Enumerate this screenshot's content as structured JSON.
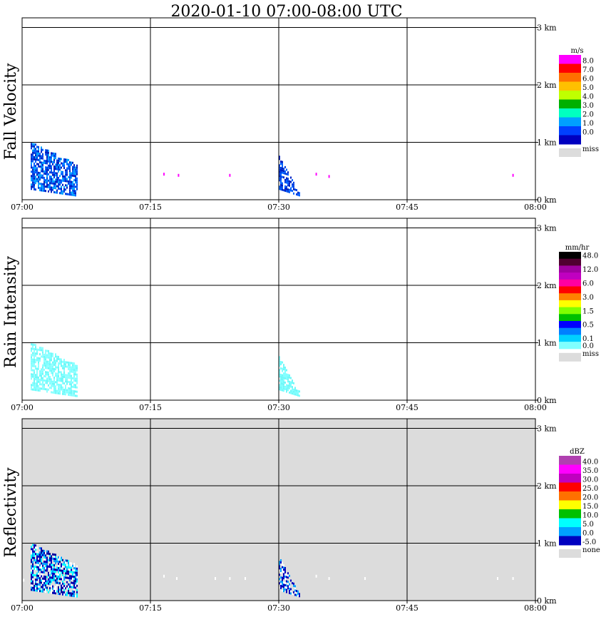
{
  "title": "2020-01-10   07:00-08:00 UTC",
  "chart_data": [
    {
      "type": "heatmap",
      "ylabel": "Fall Velocity",
      "x_ticks": [
        "07:00",
        "07:15",
        "07:30",
        "07:45",
        "08:00"
      ],
      "y_ticks": [
        "0 km",
        "1 km",
        "2 km",
        "3 km"
      ],
      "xlim": [
        "07:00",
        "08:00"
      ],
      "ylim_km": [
        0,
        3.2
      ],
      "background": "#ffffff",
      "legend": {
        "unit": "m/s",
        "entries": [
          {
            "label": "8.0",
            "color": "#ff00ff"
          },
          {
            "label": "7.0",
            "color": "#ff0000"
          },
          {
            "label": "6.0",
            "color": "#ff7000"
          },
          {
            "label": "5.0",
            "color": "#ffc000"
          },
          {
            "label": "4.0",
            "color": "#c0ff00"
          },
          {
            "label": "3.0",
            "color": "#00b000"
          },
          {
            "label": "2.0",
            "color": "#00ffc0"
          },
          {
            "label": "1.0",
            "color": "#00a0ff"
          },
          {
            "label": "0.0",
            "color": "#0040ff"
          },
          {
            "label": "",
            "color": "#0000c0"
          }
        ],
        "miss_label": "miss",
        "miss_color": "#dcdcdc"
      },
      "echoes": [
        {
          "t_start": 1.0,
          "t_end": 6.5,
          "h_top": 1.0,
          "h_bottom": 0.05,
          "colors": [
            "#0060ff",
            "#0040e0",
            "#00a0ff",
            "#0020c0"
          ]
        },
        {
          "t_start": 30.0,
          "t_end": 32.5,
          "h_top": 0.75,
          "h_bottom": 0.05,
          "colors": [
            "#0060ff",
            "#0040e0",
            "#0020c0"
          ]
        }
      ],
      "dots": [
        {
          "t": 16.5,
          "h": 0.42,
          "color": "#ff00ff"
        },
        {
          "t": 18.2,
          "h": 0.4,
          "color": "#ff00ff"
        },
        {
          "t": 24.2,
          "h": 0.4,
          "color": "#ff00ff"
        },
        {
          "t": 34.3,
          "h": 0.42,
          "color": "#ff00ff"
        },
        {
          "t": 35.8,
          "h": 0.38,
          "color": "#ff00ff"
        },
        {
          "t": 57.3,
          "h": 0.4,
          "color": "#ff00ff"
        }
      ]
    },
    {
      "type": "heatmap",
      "ylabel": "Rain Intensity",
      "x_ticks": [
        "07:00",
        "07:15",
        "07:30",
        "07:45",
        "08:00"
      ],
      "y_ticks": [
        "0 km",
        "1 km",
        "2 km",
        "3 km"
      ],
      "xlim": [
        "07:00",
        "08:00"
      ],
      "ylim_km": [
        0,
        3.2
      ],
      "background": "#ffffff",
      "legend": {
        "unit": "mm/hr",
        "entries": [
          {
            "label": "48.0",
            "color": "#000000"
          },
          {
            "label": "",
            "color": "#500030"
          },
          {
            "label": "12.0",
            "color": "#a000a0"
          },
          {
            "label": "",
            "color": "#c000c0"
          },
          {
            "label": "6.0",
            "color": "#ff00a0"
          },
          {
            "label": "",
            "color": "#ff0000"
          },
          {
            "label": "3.0",
            "color": "#ff8000"
          },
          {
            "label": "",
            "color": "#ffff00"
          },
          {
            "label": "1.5",
            "color": "#80ff00"
          },
          {
            "label": "",
            "color": "#00c000"
          },
          {
            "label": "0.5",
            "color": "#0000ff"
          },
          {
            "label": "",
            "color": "#0080ff"
          },
          {
            "label": "0.1",
            "color": "#00d0ff"
          },
          {
            "label": "0.0",
            "color": "#80ffff"
          }
        ],
        "miss_label": "miss",
        "miss_color": "#dcdcdc"
      },
      "echoes": [
        {
          "t_start": 1.0,
          "t_end": 6.5,
          "h_top": 1.0,
          "h_bottom": 0.05,
          "colors": [
            "#80ffff",
            "#70f8f8",
            "#90ffff"
          ]
        },
        {
          "t_start": 30.0,
          "t_end": 32.5,
          "h_top": 0.75,
          "h_bottom": 0.05,
          "colors": [
            "#80ffff",
            "#70f8f8"
          ]
        }
      ],
      "dots": []
    },
    {
      "type": "heatmap",
      "ylabel": "Reflectivity",
      "x_ticks": [
        "07:00",
        "07:15",
        "07:30",
        "07:45",
        "08:00"
      ],
      "y_ticks": [
        "0 km",
        "1 km",
        "2 km",
        "3 km"
      ],
      "xlim": [
        "07:00",
        "08:00"
      ],
      "ylim_km": [
        0,
        3.2
      ],
      "background": "#dcdcdc",
      "legend": {
        "unit": "dBZ",
        "entries": [
          {
            "label": "40.0",
            "color": "#b040b0"
          },
          {
            "label": "35.0",
            "color": "#ff00ff"
          },
          {
            "label": "30.0",
            "color": "#c000c0"
          },
          {
            "label": "25.0",
            "color": "#ff0000"
          },
          {
            "label": "20.0",
            "color": "#ff7000"
          },
          {
            "label": "15.0",
            "color": "#ffff00"
          },
          {
            "label": "10.0",
            "color": "#00c000"
          },
          {
            "label": "5.0",
            "color": "#00ffff"
          },
          {
            "label": "0.0",
            "color": "#00a0ff"
          },
          {
            "label": "-5.0",
            "color": "#0000c0"
          }
        ],
        "miss_label": "none",
        "miss_color": "#dcdcdc"
      },
      "echoes": [
        {
          "t_start": 1.0,
          "t_end": 6.5,
          "h_top": 1.0,
          "h_bottom": 0.05,
          "colors": [
            "#0000c0",
            "#0000a0",
            "#00a0ff",
            "#ffffff",
            "#00ffff"
          ]
        },
        {
          "t_start": 30.0,
          "t_end": 32.5,
          "h_top": 0.75,
          "h_bottom": 0.05,
          "colors": [
            "#0000c0",
            "#ffffff",
            "#00a0ff"
          ]
        }
      ],
      "dots": [
        {
          "t": 0.1,
          "h": 0.33,
          "color": "#ffffff"
        },
        {
          "t": 16.5,
          "h": 0.4,
          "color": "#ffffff"
        },
        {
          "t": 18.0,
          "h": 0.36,
          "color": "#ffffff"
        },
        {
          "t": 22.5,
          "h": 0.36,
          "color": "#ffffff"
        },
        {
          "t": 24.2,
          "h": 0.36,
          "color": "#ffffff"
        },
        {
          "t": 26.0,
          "h": 0.36,
          "color": "#ffffff"
        },
        {
          "t": 34.3,
          "h": 0.4,
          "color": "#ffffff"
        },
        {
          "t": 35.8,
          "h": 0.36,
          "color": "#ffffff"
        },
        {
          "t": 40.0,
          "h": 0.36,
          "color": "#ffffff"
        },
        {
          "t": 55.5,
          "h": 0.36,
          "color": "#ffffff"
        },
        {
          "t": 57.3,
          "h": 0.36,
          "color": "#ffffff"
        }
      ]
    }
  ]
}
